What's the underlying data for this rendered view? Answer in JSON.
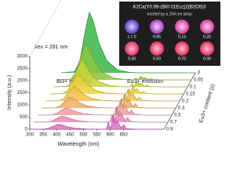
{
  "chart_data": {
    "type": "waterfall",
    "x_label": "Wavelength (nm)",
    "y_label": "Intensity (a.u.)",
    "z_label": "Eu3+ content (z)",
    "annotations": [
      "λex = 281 nm",
      "Bi3+ emission",
      "Eu3+ emission"
    ],
    "xlim": [
      300,
      800
    ],
    "xticks": [
      300,
      350,
      400,
      450,
      500,
      550,
      600,
      650
    ],
    "ylim": [
      0,
      3000
    ],
    "yticks": [
      0,
      500,
      1000,
      1500,
      2000,
      2500,
      3000
    ],
    "x": [
      300,
      350,
      370,
      390,
      405,
      420,
      440,
      470,
      510,
      550,
      585,
      590,
      593,
      597,
      603,
      612,
      618,
      625,
      640,
      650,
      660,
      700,
      800
    ],
    "series": [
      {
        "name": "0",
        "color": "#3cb44a",
        "values": [
          0,
          50,
          500,
          1750,
          2500,
          2125,
          1250,
          500,
          125,
          25,
          0,
          0,
          0,
          0,
          0,
          0,
          0,
          0,
          0,
          0,
          0,
          0,
          0
        ]
      },
      {
        "name": "0.05",
        "color": "#8cc63f",
        "values": [
          0,
          30,
          300,
          1050,
          1500,
          1275,
          750,
          300,
          75,
          15,
          0,
          45,
          75,
          30,
          15,
          150,
          60,
          90,
          15,
          45,
          8,
          0,
          0
        ]
      },
      {
        "name": "0.1",
        "color": "#c5d43a",
        "values": [
          0,
          22,
          220,
          770,
          1100,
          935,
          550,
          220,
          55,
          11,
          0,
          75,
          125,
          50,
          25,
          250,
          100,
          150,
          25,
          75,
          12,
          0,
          0
        ]
      },
      {
        "name": "0.15",
        "color": "#e9d23c",
        "values": [
          0,
          16,
          160,
          560,
          800,
          680,
          400,
          160,
          40,
          8,
          0,
          105,
          175,
          70,
          35,
          350,
          140,
          210,
          35,
          105,
          18,
          0,
          0
        ]
      },
      {
        "name": "0.2",
        "color": "#f2c24e",
        "values": [
          0,
          12,
          120,
          420,
          600,
          510,
          300,
          120,
          30,
          6,
          0,
          150,
          250,
          100,
          50,
          500,
          200,
          300,
          50,
          150,
          25,
          0,
          0
        ]
      },
      {
        "name": "0.3",
        "color": "#f1ae66",
        "values": [
          0,
          9,
          90,
          315,
          450,
          382,
          225,
          90,
          22,
          4,
          0,
          180,
          300,
          120,
          60,
          600,
          240,
          360,
          60,
          180,
          30,
          0,
          0
        ]
      },
      {
        "name": "0.5",
        "color": "#eda0a0",
        "values": [
          0,
          6,
          60,
          210,
          300,
          255,
          150,
          60,
          15,
          3,
          0,
          210,
          350,
          140,
          70,
          700,
          280,
          420,
          70,
          210,
          35,
          0,
          0
        ]
      },
      {
        "name": "0.7",
        "color": "#e889b6",
        "values": [
          0,
          5,
          50,
          175,
          250,
          212,
          125,
          50,
          12,
          2,
          0,
          195,
          325,
          130,
          65,
          650,
          260,
          390,
          65,
          195,
          32,
          0,
          0
        ]
      },
      {
        "name": "0.9",
        "color": "#df6cc4",
        "values": [
          0,
          4,
          40,
          140,
          200,
          170,
          100,
          40,
          10,
          2,
          0,
          180,
          300,
          120,
          60,
          600,
          240,
          360,
          60,
          180,
          30,
          0,
          0
        ]
      }
    ]
  },
  "inset": {
    "title": "K2Ca(Y0.99-zBi0.01Euz)2(B2O5)3",
    "subtitle": "excited by a 254 nm lamp",
    "photos": [
      "z = 0",
      "0.05",
      "0.15",
      "0.20",
      "0.30",
      "0.50",
      "0.70",
      "0.90"
    ]
  }
}
